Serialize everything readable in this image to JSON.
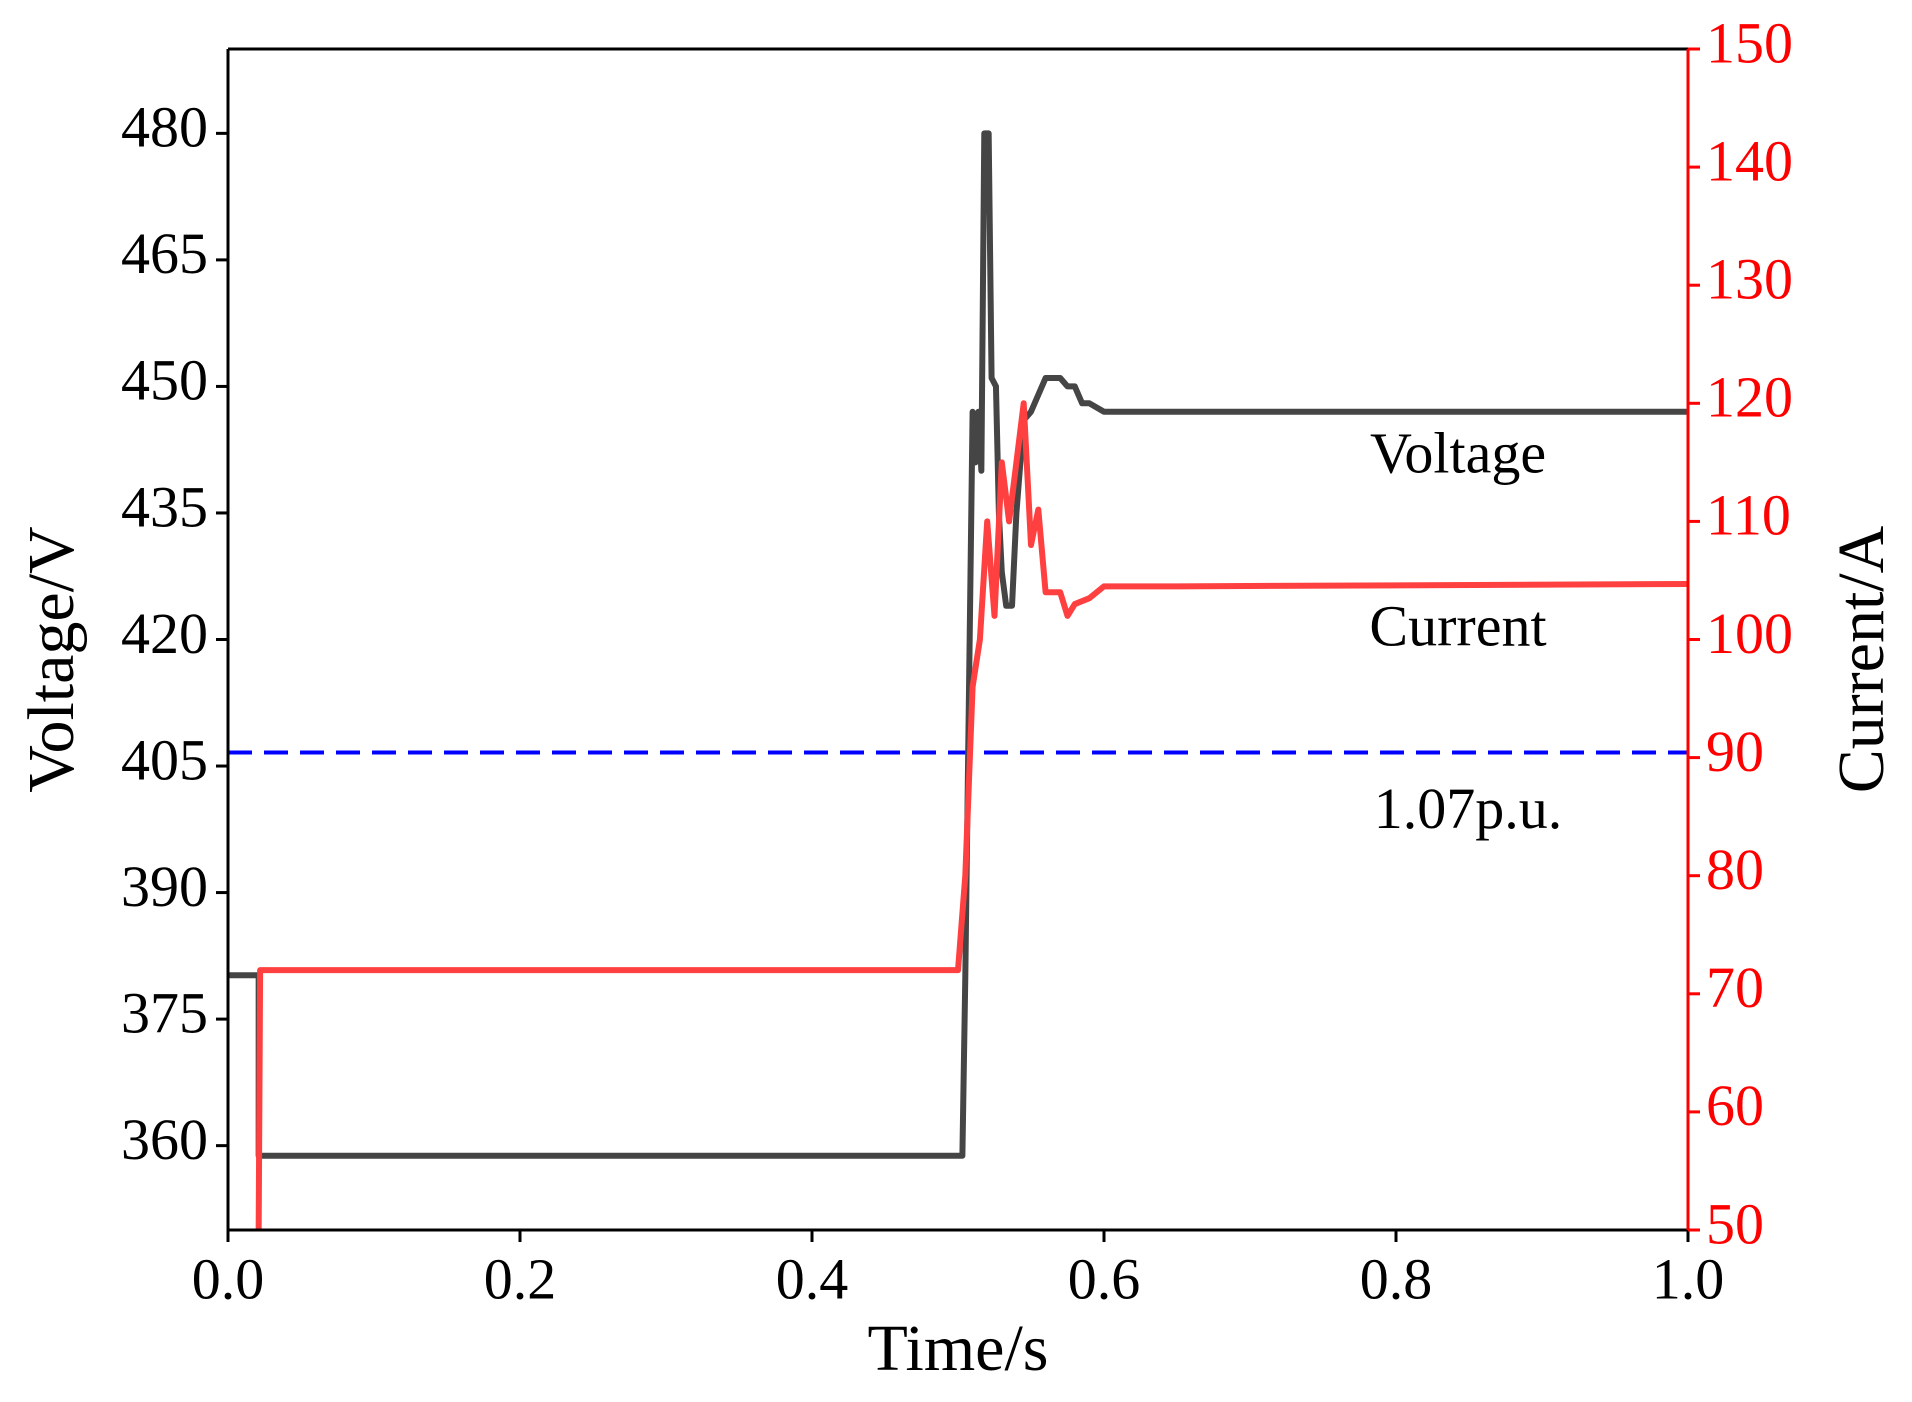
{
  "chart_data": {
    "type": "line",
    "xlabel": "Time/s",
    "ylabel": "Voltage/V",
    "y2label": "Current/A",
    "xlim": [
      0,
      1
    ],
    "xticks": [
      {
        "value": 0,
        "label": "0.0"
      },
      0.2,
      0.4,
      0.6,
      0.8,
      {
        "value": 1,
        "label": "1.0"
      }
    ],
    "ylim": [
      350,
      490
    ],
    "yticks": [
      360,
      375,
      390,
      405,
      420,
      435,
      450,
      465,
      480
    ],
    "y2lim": [
      50,
      150
    ],
    "y2ticks": [
      50,
      60,
      70,
      80,
      90,
      100,
      110,
      120,
      130,
      140,
      150
    ],
    "series": [
      {
        "name": "Voltage",
        "color": "#454545",
        "x": [
          0,
          0.021,
          0.021,
          0.503,
          0.505,
          0.51,
          0.512,
          0.514,
          0.516,
          0.518,
          0.521,
          0.523,
          0.526,
          0.528,
          0.53,
          0.533,
          0.537,
          0.54,
          0.545,
          0.55,
          0.555,
          0.56,
          0.57,
          0.575,
          0.58,
          0.585,
          0.59,
          0.6,
          0.65,
          1.0
        ],
        "values": [
          380.2,
          380.2,
          358.8,
          358.8,
          380,
          447,
          441,
          447,
          440,
          480,
          480,
          451,
          450,
          435,
          428,
          424,
          424,
          435,
          446,
          447,
          449,
          451,
          451,
          450,
          450,
          448,
          448,
          447,
          447,
          447
        ]
      },
      {
        "name": "Current",
        "color": "#ff4040",
        "axis": "y2",
        "x": [
          0.021,
          0.022,
          0.5,
          0.505,
          0.51,
          0.515,
          0.52,
          0.525,
          0.53,
          0.535,
          0.54,
          0.545,
          0.55,
          0.555,
          0.56,
          0.57,
          0.575,
          0.58,
          0.59,
          0.6,
          0.65,
          1.0
        ],
        "values": [
          50,
          72,
          72,
          80,
          96,
          100,
          110,
          102,
          115,
          110,
          115,
          120,
          108,
          111,
          104,
          104,
          102,
          103,
          103.5,
          104.5,
          104.5,
          104.7
        ]
      }
    ],
    "reference_line": {
      "value": 406.6,
      "label": "1.07p.u.",
      "color": "#0000ff"
    },
    "y2color": "#ff0000"
  }
}
